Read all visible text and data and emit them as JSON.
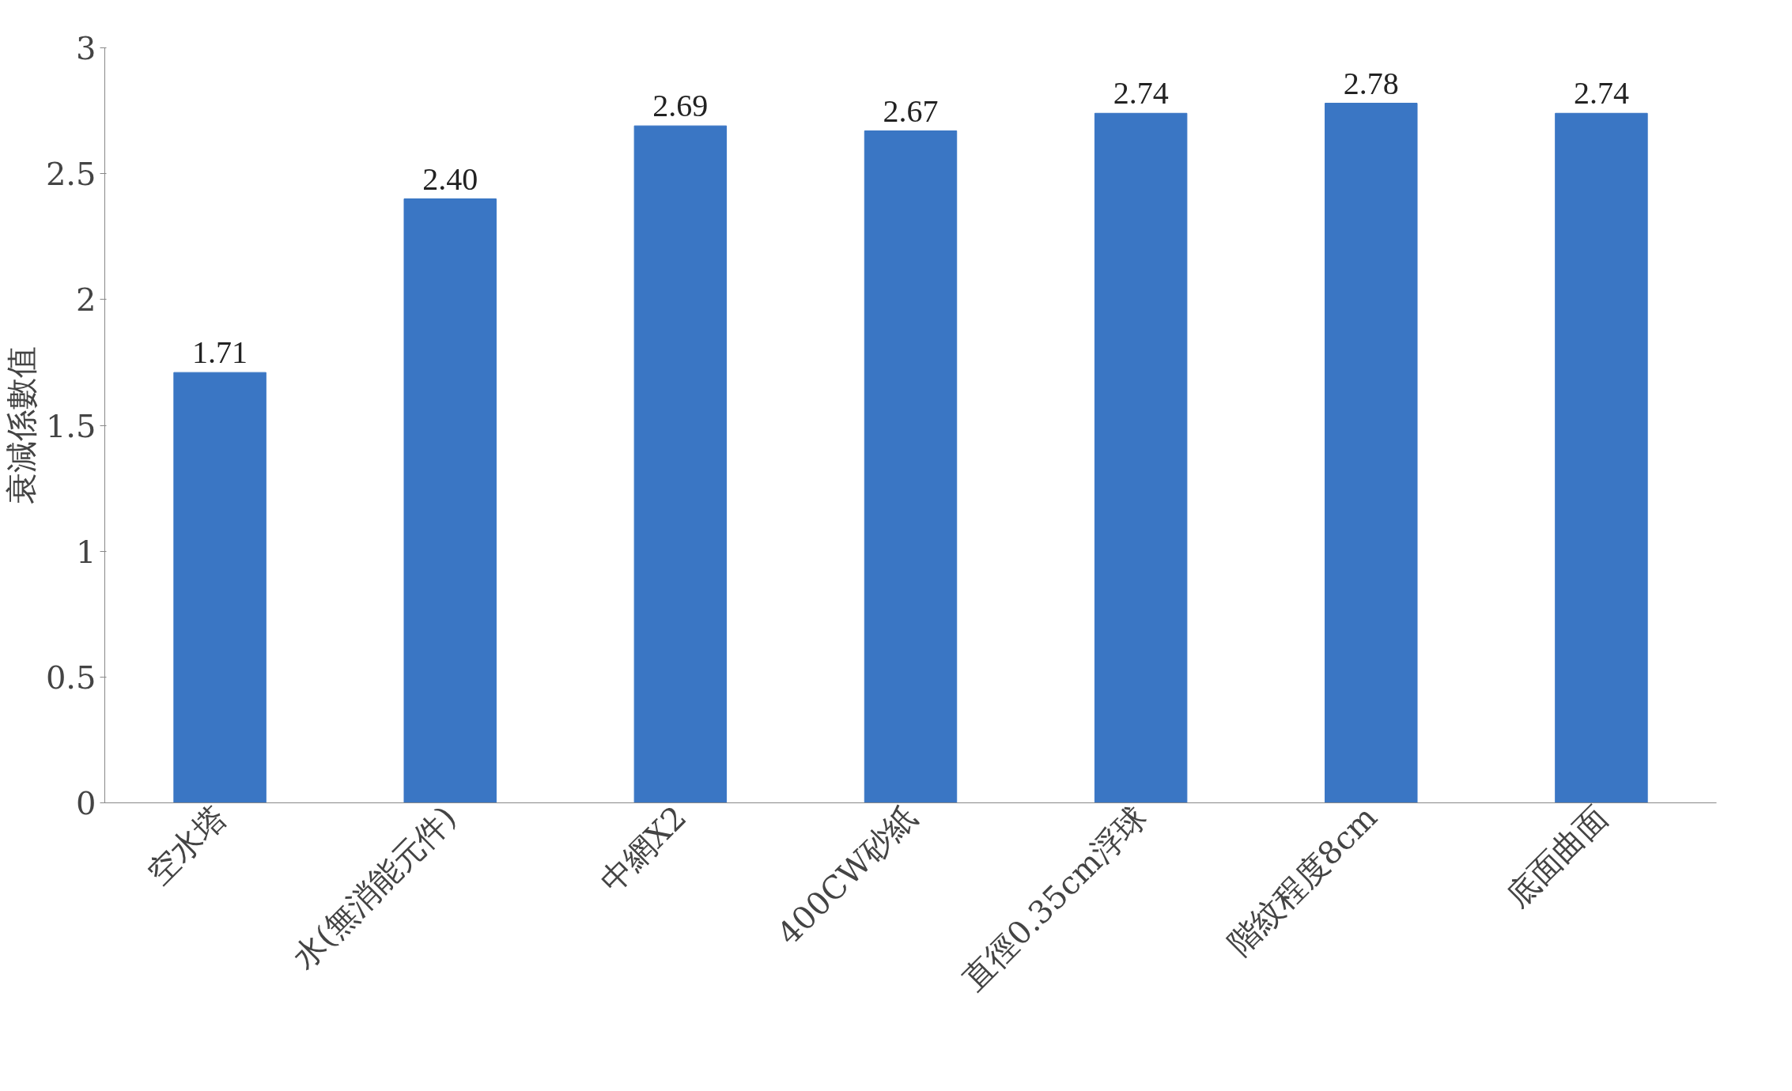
{
  "chart_data": {
    "type": "bar",
    "ylabel": "衰減係數值",
    "categories": [
      "空水塔",
      "水(無消能元件)",
      "中網X2",
      "400CW砂紙",
      "直徑0.35cm浮球",
      "階紋程度8cm",
      "底面曲面"
    ],
    "values": [
      1.71,
      2.4,
      2.69,
      2.67,
      2.74,
      2.78,
      2.74
    ],
    "value_labels": [
      "1.71",
      "2.40",
      "2.69",
      "2.67",
      "2.74",
      "2.78",
      "2.74"
    ],
    "color": "#3a76c4",
    "ylim": [
      0,
      3
    ],
    "yticks": [
      0,
      0.5,
      1,
      1.5,
      2,
      2.5,
      3
    ],
    "grid": false
  }
}
